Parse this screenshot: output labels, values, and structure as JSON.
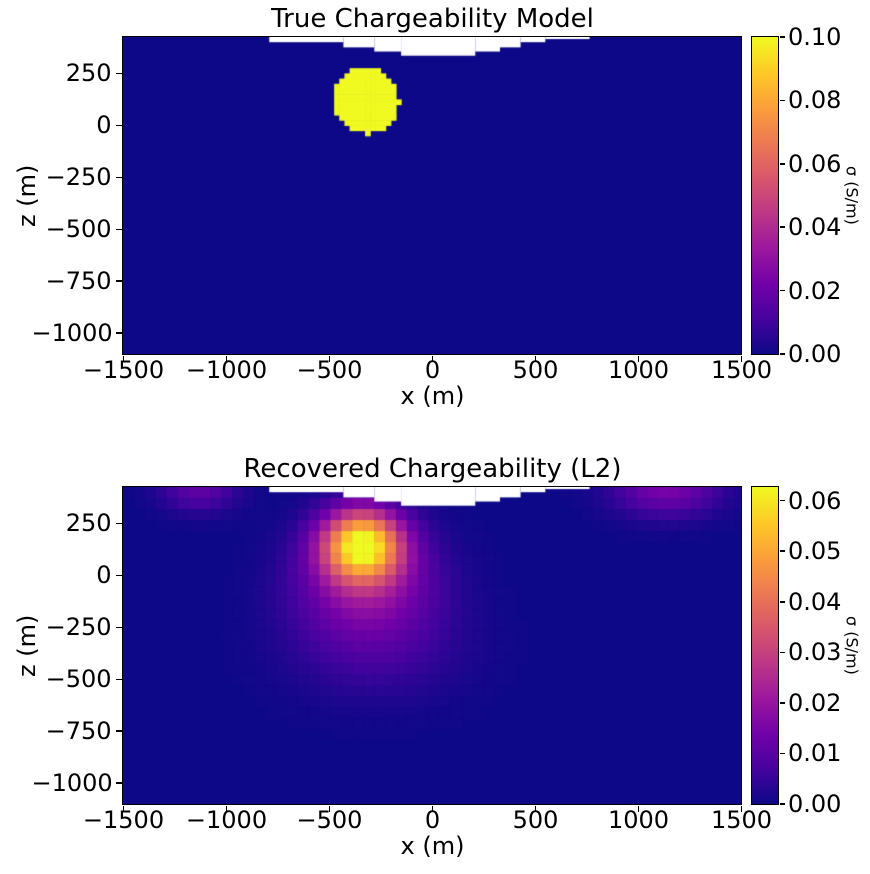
{
  "figure": {
    "background": "#ffffff",
    "units": "S/m",
    "text_color": "#000000"
  },
  "colormap_stops": {
    "plasma": [
      "#0d0887",
      "#46039f",
      "#7201a8",
      "#9c179e",
      "#bd3786",
      "#d8576b",
      "#ed7953",
      "#fb9f3a",
      "#fdca26",
      "#f0f921"
    ]
  },
  "chart_data": [
    {
      "type": "heatmap",
      "title": "True Chargeability Model",
      "xlabel": "x (m)",
      "ylabel": "z (m)",
      "xlim": [
        -1500,
        1500
      ],
      "zlim": [
        -1100,
        425
      ],
      "grid": false,
      "colormap": "plasma",
      "vmin": 0.0,
      "vmax": 0.1,
      "background_value": 0.0,
      "cell_size_m": 25,
      "features": [
        {
          "type": "disk",
          "x": -320,
          "z": 120,
          "r": 158,
          "value": 0.1
        }
      ],
      "topography_surface_steps": [
        [
          -790,
          -430,
          400
        ],
        [
          -430,
          -280,
          375
        ],
        [
          -280,
          -150,
          355
        ],
        [
          -150,
          210,
          335
        ],
        [
          210,
          330,
          355
        ],
        [
          330,
          430,
          375
        ],
        [
          430,
          550,
          400
        ],
        [
          550,
          765,
          415
        ]
      ],
      "xticks": {
        "values": [
          -1500,
          -1000,
          -500,
          0,
          500,
          1000,
          1500
        ],
        "labels": [
          "−1500",
          "−1000",
          "−500",
          "0",
          "500",
          "1000",
          "1500"
        ]
      },
      "zticks": {
        "values": [
          250,
          0,
          -250,
          -500,
          -750,
          -1000
        ],
        "labels": [
          "250",
          "0",
          "−250",
          "−500",
          "−750",
          "−1000"
        ]
      },
      "colorbar": {
        "label": "σ (S/m)",
        "vmax": 0.1,
        "ticks": {
          "values": [
            0.0,
            0.02,
            0.04,
            0.06,
            0.08,
            0.1
          ],
          "labels": [
            "0.00",
            "0.02",
            "0.04",
            "0.06",
            "0.08",
            "0.10"
          ]
        }
      }
    },
    {
      "type": "heatmap",
      "title": "Recovered Chargeability (L2)",
      "xlabel": "x (m)",
      "ylabel": "z (m)",
      "xlim": [
        -1500,
        1500
      ],
      "zlim": [
        -1100,
        425
      ],
      "grid": false,
      "colormap": "plasma",
      "vmin": 0.0,
      "vmax": 0.0627,
      "background_value": 0.0,
      "cell_size_m": 53,
      "features": [
        {
          "type": "gaussian",
          "x": -340,
          "z": 150,
          "sx": 135,
          "sz": 118,
          "amp": 0.058
        },
        {
          "type": "gaussian",
          "x": -320,
          "z": -40,
          "sx": 235,
          "sz": 180,
          "amp": 0.018
        },
        {
          "type": "gaussian",
          "x": -280,
          "z": -350,
          "sx": 300,
          "sz": 180,
          "amp": 0.006
        },
        {
          "type": "gaussian",
          "x": -1130,
          "z": 420,
          "sx": 130,
          "sz": 80,
          "amp": 0.011
        },
        {
          "type": "gaussian",
          "x": 1140,
          "z": 420,
          "sx": 180,
          "sz": 95,
          "amp": 0.015
        }
      ],
      "topography_surface_steps": [
        [
          -790,
          -430,
          400
        ],
        [
          -430,
          -280,
          375
        ],
        [
          -280,
          -150,
          355
        ],
        [
          -150,
          210,
          335
        ],
        [
          210,
          330,
          355
        ],
        [
          330,
          430,
          375
        ],
        [
          430,
          550,
          400
        ],
        [
          550,
          765,
          415
        ]
      ],
      "xticks": {
        "values": [
          -1500,
          -1000,
          -500,
          0,
          500,
          1000,
          1500
        ],
        "labels": [
          "−1500",
          "−1000",
          "−500",
          "0",
          "500",
          "1000",
          "1500"
        ]
      },
      "zticks": {
        "values": [
          250,
          0,
          -250,
          -500,
          -750,
          -1000
        ],
        "labels": [
          "250",
          "0",
          "−250",
          "−500",
          "−750",
          "−1000"
        ]
      },
      "colorbar": {
        "label": "σ (S/m)",
        "vmax": 0.0627,
        "ticks": {
          "values": [
            0.0,
            0.01,
            0.02,
            0.03,
            0.04,
            0.05,
            0.06
          ],
          "labels": [
            "0.00",
            "0.01",
            "0.02",
            "0.03",
            "0.04",
            "0.05",
            "0.06"
          ]
        }
      }
    }
  ]
}
